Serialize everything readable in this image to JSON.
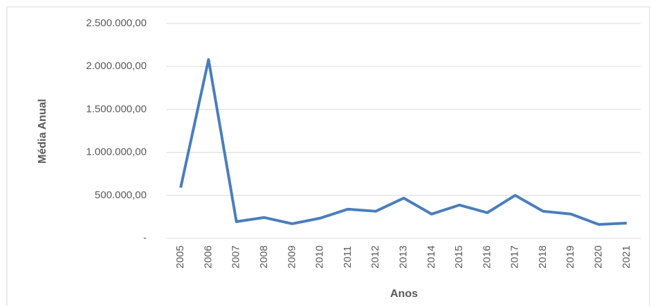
{
  "chart_data": {
    "type": "line",
    "categories": [
      "2005",
      "2006",
      "2007",
      "2008",
      "2009",
      "2010",
      "2011",
      "2012",
      "2013",
      "2014",
      "2015",
      "2016",
      "2017",
      "2018",
      "2019",
      "2020",
      "2021"
    ],
    "series": [
      {
        "name": "Média Anual",
        "color": "#4a7ebb",
        "values": [
          590000,
          2080000,
          194000,
          242000,
          169000,
          234000,
          339000,
          315000,
          468000,
          282000,
          387000,
          298000,
          500000,
          315000,
          282000,
          161000,
          177000
        ]
      }
    ],
    "y_label": "Média Anual",
    "x_label": "Anos",
    "ylim": [
      0,
      2500000
    ],
    "yticks": [
      {
        "value": 0,
        "label": "-"
      },
      {
        "value": 500000,
        "label": "500.000,00"
      },
      {
        "value": 1000000,
        "label": "1.000.000,00"
      },
      {
        "value": 1500000,
        "label": "1.500.000,00"
      },
      {
        "value": 2000000,
        "label": "2.000.000,00"
      },
      {
        "value": 2500000,
        "label": "2.500.000,00"
      }
    ],
    "grid": true
  }
}
